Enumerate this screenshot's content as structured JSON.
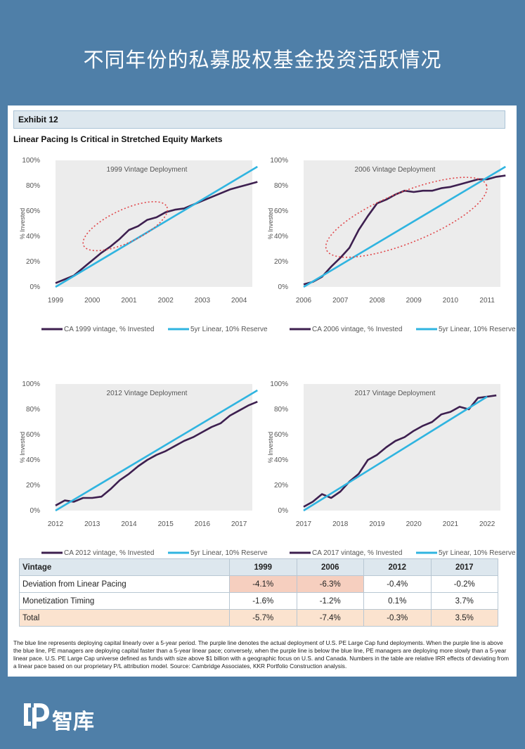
{
  "page_title": "不同年份的私募股权基金投资活跃情况",
  "brand": "智库",
  "exhibit_label": "Exhibit 12",
  "exhibit_title": "Linear Pacing Is Critical in Stretched Equity Markets",
  "colors": {
    "actual": "#3d1f4f",
    "linear": "#2fb4e0",
    "ellipse": "#e0464a",
    "background": "#4f7fa8"
  },
  "chart_data": [
    {
      "type": "line",
      "title": "1999 Vintage Deployment",
      "ylabel": "% Invested",
      "ylim": [
        0,
        100
      ],
      "yticks": [
        "0%",
        "20%",
        "40%",
        "60%",
        "80%",
        "100%"
      ],
      "xlim": [
        1999,
        2004.2
      ],
      "xticks": [
        "1999",
        "2000",
        "2001",
        "2002",
        "2003",
        "2004"
      ],
      "highlight_ellipse": {
        "x_center": 2000.9,
        "y_center": 48,
        "x_radius": 1.25,
        "y_radius": 13,
        "rotation": -25
      },
      "series": [
        {
          "name": "CA 1999 vintage, % Invested",
          "x": [
            1999,
            1999.25,
            1999.5,
            1999.75,
            2000,
            2000.25,
            2000.5,
            2000.75,
            2001,
            2001.25,
            2001.5,
            2001.75,
            2002,
            2002.25,
            2002.5,
            2002.75,
            2003,
            2003.25,
            2003.5,
            2003.75,
            2004,
            2004.25,
            2004.5
          ],
          "y": [
            3,
            6,
            9,
            15,
            21,
            27,
            32,
            38,
            45,
            48,
            53,
            55,
            59,
            61,
            62,
            65,
            68,
            71,
            74,
            77,
            79,
            81,
            83
          ]
        },
        {
          "name": "5yr Linear, 10% Reserve",
          "x": [
            1999,
            2004.5
          ],
          "y": [
            0,
            95
          ]
        }
      ]
    },
    {
      "type": "line",
      "title": "2006 Vintage Deployment",
      "ylabel": "% Invested",
      "ylim": [
        0,
        100
      ],
      "yticks": [
        "0%",
        "20%",
        "40%",
        "60%",
        "80%",
        "100%"
      ],
      "xlim": [
        2006,
        2011.2
      ],
      "xticks": [
        "2006",
        "2007",
        "2008",
        "2009",
        "2010",
        "2011"
      ],
      "highlight_ellipse": {
        "x_center": 2008.8,
        "y_center": 55,
        "x_radius": 2.35,
        "y_radius": 20,
        "rotation": -22
      },
      "series": [
        {
          "name": "CA 2006 vintage, % Invested",
          "x": [
            2006,
            2006.25,
            2006.5,
            2006.75,
            2007,
            2007.25,
            2007.5,
            2007.75,
            2008,
            2008.25,
            2008.5,
            2008.75,
            2009,
            2009.25,
            2009.5,
            2009.75,
            2010,
            2010.25,
            2010.5,
            2010.75,
            2011,
            2011.25,
            2011.5
          ],
          "y": [
            2,
            4,
            8,
            16,
            23,
            31,
            45,
            56,
            66,
            69,
            73,
            76,
            75,
            76,
            76,
            78,
            79,
            81,
            83,
            85,
            85,
            87,
            88
          ]
        },
        {
          "name": "5yr Linear, 10% Reserve",
          "x": [
            2006,
            2011.5
          ],
          "y": [
            0,
            95
          ]
        }
      ]
    },
    {
      "type": "line",
      "title": "2012 Vintage Deployment",
      "ylabel": "% Invested",
      "ylim": [
        0,
        100
      ],
      "yticks": [
        "0%",
        "20%",
        "40%",
        "60%",
        "80%",
        "100%"
      ],
      "xlim": [
        2012,
        2017.2
      ],
      "xticks": [
        "2012",
        "2013",
        "2014",
        "2015",
        "2016",
        "2017"
      ],
      "series": [
        {
          "name": "CA 2012 vintage, % Invested",
          "x": [
            2012,
            2012.25,
            2012.5,
            2012.75,
            2013,
            2013.25,
            2013.5,
            2013.75,
            2014,
            2014.25,
            2014.5,
            2014.75,
            2015,
            2015.25,
            2015.5,
            2015.75,
            2016,
            2016.25,
            2016.5,
            2016.75,
            2017,
            2017.25,
            2017.5
          ],
          "y": [
            4,
            8,
            7,
            10,
            10,
            11,
            17,
            24,
            29,
            35,
            40,
            44,
            47,
            51,
            55,
            58,
            62,
            66,
            69,
            75,
            79,
            83,
            86
          ]
        },
        {
          "name": "5yr Linear, 10% Reserve",
          "x": [
            2012,
            2017.5
          ],
          "y": [
            0,
            95
          ]
        }
      ]
    },
    {
      "type": "line",
      "title": "2017 Vintage Deployment",
      "ylabel": "% Invested",
      "ylim": [
        0,
        100
      ],
      "yticks": [
        "0%",
        "20%",
        "40%",
        "60%",
        "80%",
        "100%"
      ],
      "xlim": [
        2017,
        2022.2
      ],
      "xticks": [
        "2017",
        "2018",
        "2019",
        "2020",
        "2021",
        "2022"
      ],
      "series": [
        {
          "name": "CA 2017 vintage, % Invested",
          "x": [
            2017,
            2017.25,
            2017.5,
            2017.75,
            2018,
            2018.25,
            2018.5,
            2018.75,
            2019,
            2019.25,
            2019.5,
            2019.75,
            2020,
            2020.25,
            2020.5,
            2020.75,
            2021,
            2021.25,
            2021.5,
            2021.75,
            2022,
            2022.25
          ],
          "y": [
            3,
            7,
            13,
            10,
            15,
            23,
            29,
            40,
            44,
            50,
            55,
            58,
            63,
            67,
            70,
            76,
            78,
            82,
            80,
            89,
            90,
            91
          ]
        },
        {
          "name": "5yr Linear, 10% Reserve",
          "x": [
            2017,
            2022
          ],
          "y": [
            0,
            90
          ]
        }
      ]
    }
  ],
  "table": {
    "headers": [
      "Vintage",
      "1999",
      "2006",
      "2012",
      "2017"
    ],
    "rows": [
      {
        "label": "Deviation from Linear Pacing",
        "values": [
          "-4.1%",
          "-6.3%",
          "-0.4%",
          "-0.2%"
        ]
      },
      {
        "label": "Monetization Timing",
        "values": [
          "-1.6%",
          "-1.2%",
          "0.1%",
          "3.7%"
        ]
      },
      {
        "label": "Total",
        "values": [
          "-5.7%",
          "-7.4%",
          "-0.3%",
          "3.5%"
        ]
      }
    ]
  },
  "footnote": "The blue line represents deploying capital linearly over a 5-year period. The purple line denotes the actual deployment of U.S. PE Large Cap fund deployments. When the purple line is above the blue line, PE managers are deploying capital faster than a 5-year linear pace; conversely, when the purple line is below the blue line, PE managers are deploying more slowly than a 5-year linear pace. U.S. PE Large Cap universe defined as funds with size above $1 billion with a geographic focus on U.S. and Canada. Numbers in the table are relative IRR effects of deviating from a linear pace based on our proprietary P/L attribution model. Source: Cambridge Associates, KKR Portfolio Construction analysis."
}
